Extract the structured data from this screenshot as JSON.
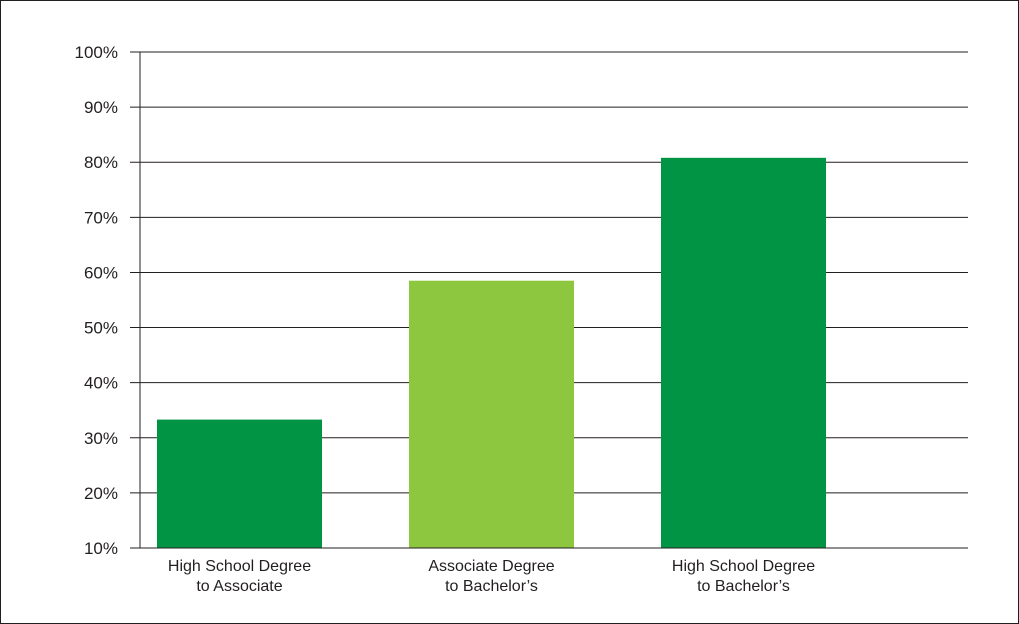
{
  "chart_data": {
    "type": "bar",
    "categories": [
      [
        "High School Degree",
        "to Associate"
      ],
      [
        "Associate Degree",
        "to Bachelor’s"
      ],
      [
        "High School Degree",
        "to Bachelor’s"
      ]
    ],
    "values": [
      33.3,
      58.5,
      80.8
    ],
    "bar_colors": [
      "#009444",
      "#8dc63f",
      "#009444"
    ],
    "ylim": [
      10,
      100
    ],
    "yticks": [
      10,
      20,
      30,
      40,
      50,
      60,
      70,
      80,
      90,
      100
    ],
    "ytick_labels": [
      "10%",
      "20%",
      "30%",
      "40%",
      "50%",
      "60%",
      "70%",
      "80%",
      "90%",
      "100%"
    ],
    "grid": true,
    "legend": "none"
  }
}
